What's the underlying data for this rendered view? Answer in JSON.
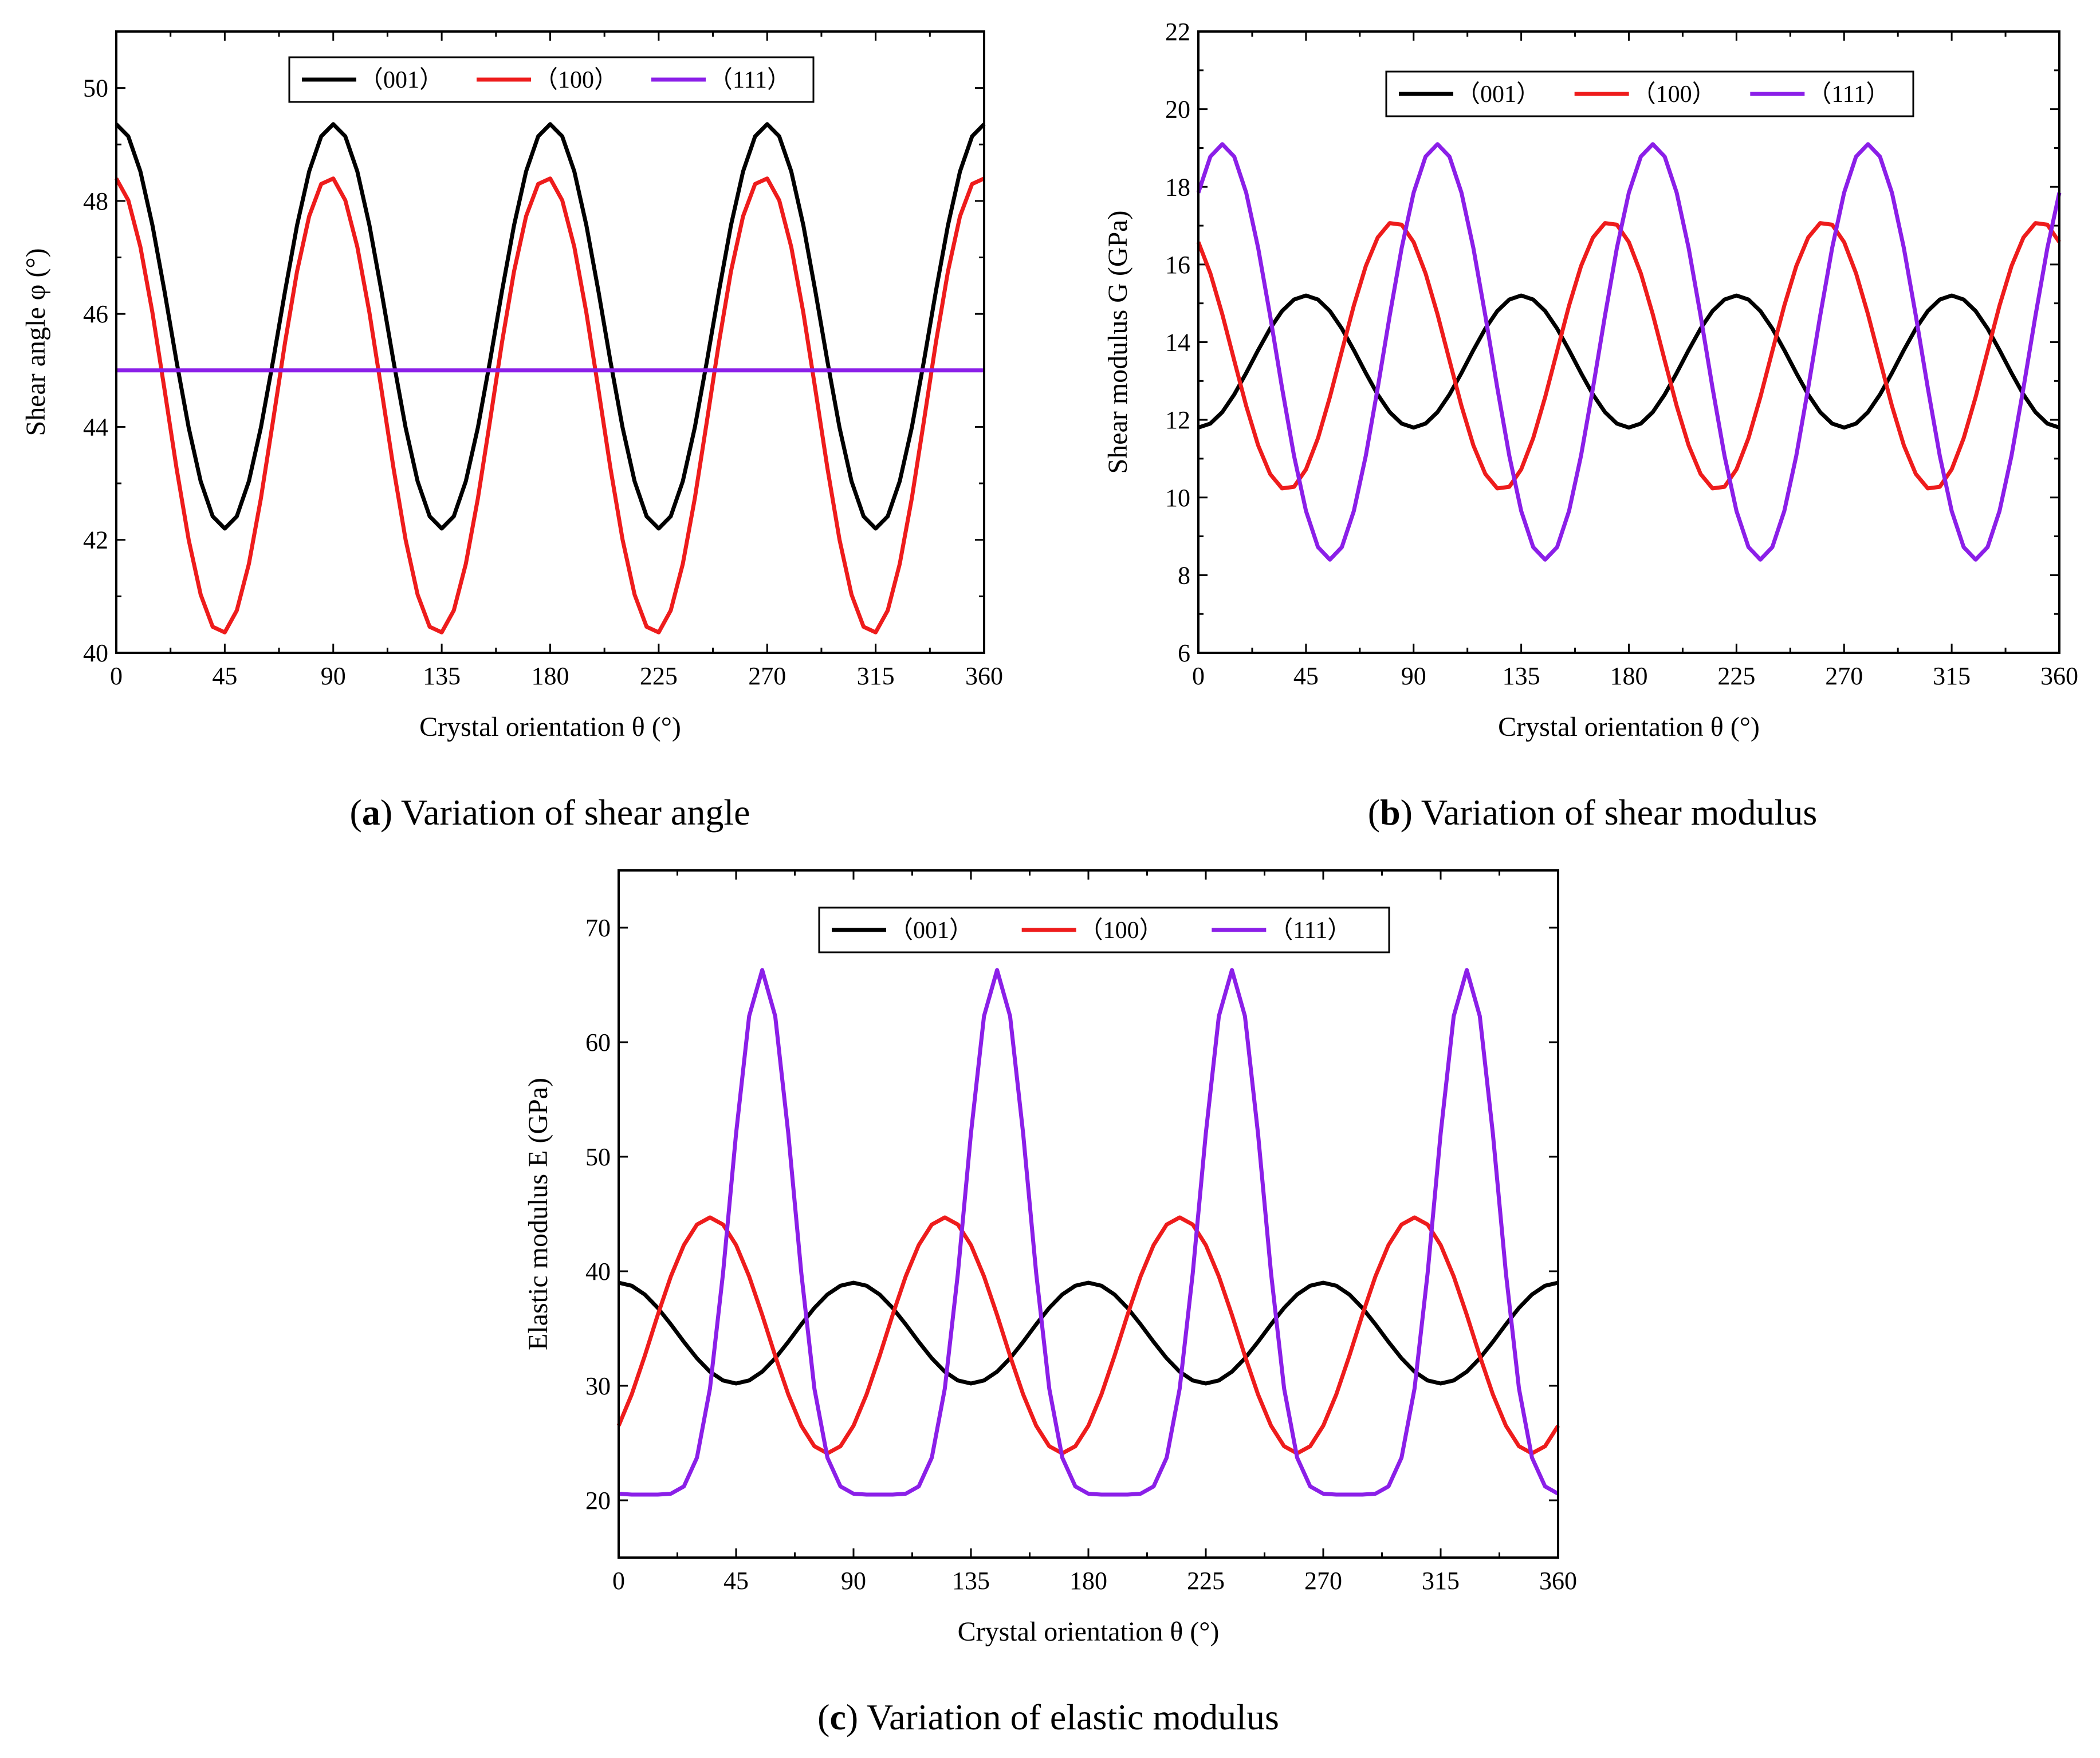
{
  "colors": {
    "s001": "#000000",
    "s100": "#ee1c1c",
    "s111": "#8b1fe8"
  },
  "chart_data": [
    {
      "id": "a",
      "type": "line",
      "caption_letter": "a",
      "caption_text": " Variation of shear angle",
      "xlabel": "Crystal orientation θ (°)",
      "ylabel": "Shear angle φ (°)",
      "xlim": [
        0,
        360
      ],
      "ylim": [
        40,
        51
      ],
      "xticks": [
        0,
        45,
        90,
        135,
        180,
        225,
        270,
        315,
        360
      ],
      "yticks": [
        40,
        42,
        44,
        46,
        48,
        50
      ],
      "legend": [
        "（001）",
        "（100）",
        "（111）"
      ],
      "series": [
        {
          "name": "（001）",
          "color": "#000000",
          "period": 90,
          "mean": 45.78,
          "amp": 3.58,
          "phase": 0,
          "pow": 1
        },
        {
          "name": "（100）",
          "color": "#ee1c1c",
          "period": 90,
          "mean": 44.38,
          "amp": 4.04,
          "phase": -1.5,
          "pow": 1
        },
        {
          "name": "（111）",
          "color": "#8b1fe8",
          "period": 90,
          "mean": 45.0,
          "amp": 0,
          "phase": 0,
          "pow": 1
        }
      ]
    },
    {
      "id": "b",
      "type": "line",
      "caption_letter": "b",
      "caption_text": " Variation of shear modulus",
      "xlabel": "Crystal orientation θ (°)",
      "ylabel": "Shear modulus G (GPa)",
      "xlim": [
        0,
        360
      ],
      "ylim": [
        6,
        22
      ],
      "xticks": [
        0,
        45,
        90,
        135,
        180,
        225,
        270,
        315,
        360
      ],
      "yticks": [
        6,
        8,
        10,
        12,
        14,
        16,
        18,
        20,
        22
      ],
      "legend": [
        "（001）",
        "（100）",
        "（111）"
      ],
      "series": [
        {
          "name": "（001）",
          "color": "#000000",
          "period": 90,
          "mean": 13.5,
          "amp": -1.7,
          "phase": 0,
          "pow": 1
        },
        {
          "name": "（100）",
          "color": "#ee1c1c",
          "period": 90,
          "mean": 13.65,
          "amp": 3.45,
          "phase": 82,
          "pow": 1
        },
        {
          "name": "（111）",
          "color": "#8b1fe8",
          "period": 90,
          "mean": 13.75,
          "amp": 5.35,
          "phase": 10,
          "pow": 1
        }
      ]
    },
    {
      "id": "c",
      "type": "line",
      "caption_letter": "c",
      "caption_text": " Variation of elastic modulus",
      "xlabel": "Crystal orientation θ (°)",
      "ylabel": "Elastic modulus E (GPa)",
      "xlim": [
        0,
        360
      ],
      "ylim": [
        15,
        75
      ],
      "xticks": [
        0,
        45,
        90,
        135,
        180,
        225,
        270,
        315,
        360
      ],
      "yticks": [
        20,
        30,
        40,
        50,
        60,
        70
      ],
      "legend": [
        "（001）",
        "（100）",
        "（111）"
      ],
      "series": [
        {
          "name": "（001）",
          "color": "#000000",
          "period": 90,
          "mean": 34.6,
          "amp": 4.4,
          "phase": 0,
          "pow": 1
        },
        {
          "name": "（100）",
          "color": "#ee1c1c",
          "period": 90,
          "mean": 34.4,
          "amp": 10.3,
          "phase": 35,
          "pow": 1
        },
        {
          "name": "（111）",
          "color": "#8b1fe8",
          "min": 20.5,
          "max": 66.3,
          "period": 90,
          "phase": 55,
          "pow": 3,
          "peak": true
        }
      ]
    }
  ]
}
